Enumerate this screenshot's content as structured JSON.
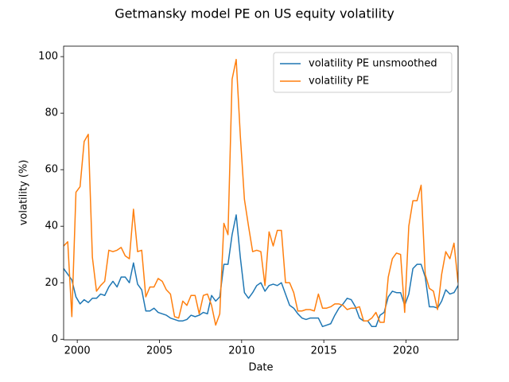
{
  "chart_data": {
    "type": "line",
    "title": "Getmansky model PE on US equity volatility",
    "x_label": "Date",
    "y_label": "volatility (%)",
    "x": [
      1999.17,
      1999.42,
      1999.67,
      1999.92,
      2000.17,
      2000.42,
      2000.67,
      2000.92,
      2001.17,
      2001.42,
      2001.67,
      2001.92,
      2002.17,
      2002.42,
      2002.67,
      2002.92,
      2003.17,
      2003.42,
      2003.67,
      2003.92,
      2004.17,
      2004.42,
      2004.67,
      2004.92,
      2005.17,
      2005.42,
      2005.67,
      2005.92,
      2006.17,
      2006.42,
      2006.67,
      2006.92,
      2007.17,
      2007.42,
      2007.67,
      2007.92,
      2008.17,
      2008.42,
      2008.67,
      2008.92,
      2009.17,
      2009.42,
      2009.67,
      2009.92,
      2010.17,
      2010.42,
      2010.67,
      2010.92,
      2011.17,
      2011.42,
      2011.67,
      2011.92,
      2012.17,
      2012.42,
      2012.67,
      2012.92,
      2013.17,
      2013.42,
      2013.67,
      2013.92,
      2014.17,
      2014.42,
      2014.67,
      2014.92,
      2015.17,
      2015.42,
      2015.67,
      2015.92,
      2016.17,
      2016.42,
      2016.67,
      2016.92,
      2017.17,
      2017.42,
      2017.67,
      2017.92,
      2018.17,
      2018.42,
      2018.67,
      2018.92,
      2019.17,
      2019.42,
      2019.67,
      2019.92,
      2020.17,
      2020.42,
      2020.67,
      2020.92,
      2021.17,
      2021.42,
      2021.67,
      2021.92,
      2022.17,
      2022.42,
      2022.67,
      2022.92,
      2023.17
    ],
    "series": [
      {
        "name": "volatility PE unsmoothed",
        "color": "#1f77b4",
        "values": [
          25,
          23,
          21,
          15,
          12.5,
          14,
          13,
          14.5,
          14.5,
          16,
          15.5,
          18.5,
          20.5,
          18.5,
          22,
          22,
          20,
          27,
          19.5,
          17.5,
          10,
          10,
          11,
          9.5,
          9,
          8.5,
          7.5,
          7,
          6.5,
          6.5,
          7,
          8.5,
          8,
          8.5,
          9.5,
          9,
          15.5,
          13.5,
          15,
          26.5,
          26.5,
          37,
          44,
          29,
          16.5,
          14.5,
          16.5,
          19,
          20,
          17,
          19,
          19.5,
          19,
          20,
          16,
          12,
          11,
          9,
          7.5,
          7,
          7.5,
          7.5,
          7.5,
          4.5,
          5,
          5.5,
          8.5,
          11,
          12.5,
          14.5,
          14,
          11.5,
          7.5,
          6.5,
          6.5,
          4.5,
          4.5,
          8.5,
          9.5,
          15,
          17,
          16.5,
          16.5,
          12,
          16,
          25,
          26.5,
          26.5,
          22,
          11.5,
          11.5,
          11,
          13.5,
          17.5,
          16,
          16.5,
          19
        ]
      },
      {
        "name": "volatility PE",
        "color": "#ff7f0e",
        "values": [
          33,
          34.5,
          8,
          52,
          54,
          70,
          72.5,
          29,
          17,
          19,
          20.5,
          31.5,
          31,
          31.5,
          32.5,
          29.5,
          28.5,
          46,
          31,
          31.5,
          15,
          18.5,
          18.5,
          21.5,
          20.5,
          17.5,
          16,
          8,
          7.5,
          13.5,
          12,
          15.5,
          15.5,
          9,
          15.5,
          16,
          12,
          5,
          9,
          41,
          37,
          92,
          99,
          72,
          49.5,
          40,
          31,
          31.5,
          31,
          19,
          38,
          33,
          38.5,
          38.5,
          20,
          20,
          16.5,
          10,
          10,
          10.5,
          10.5,
          10,
          16,
          11,
          11,
          11.5,
          12.5,
          12.5,
          12,
          10.5,
          11,
          11,
          11.5,
          6.5,
          6.5,
          7.5,
          9.5,
          6,
          6,
          22,
          28.5,
          30.5,
          30,
          9.5,
          40,
          49,
          49,
          54.5,
          23,
          18,
          17,
          10.5,
          23,
          31,
          28.5,
          34,
          20
        ]
      }
    ],
    "xlim": [
      1999.17,
      2023.17
    ],
    "ylim": [
      -0.2,
      103.7
    ],
    "xticks": [
      2000,
      2005,
      2010,
      2015,
      2020
    ],
    "yticks": [
      0,
      20,
      40,
      60,
      80,
      100
    ],
    "grid": false,
    "legend": "upper right"
  }
}
